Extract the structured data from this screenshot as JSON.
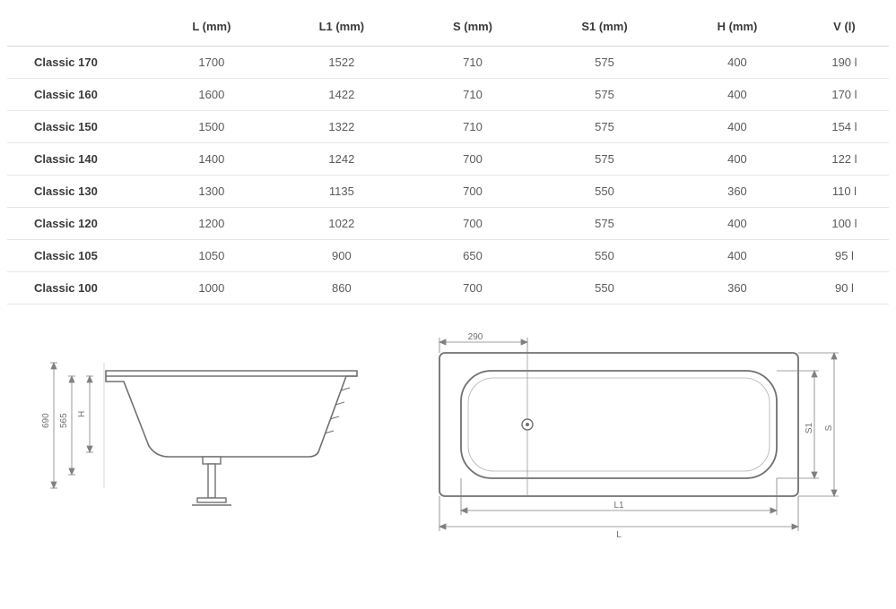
{
  "table": {
    "columns": [
      "",
      "L (mm)",
      "L1 (mm)",
      "S (mm)",
      "S1  (mm)",
      "H  (mm)",
      "V (l)"
    ],
    "rows": [
      [
        "Classic 170",
        "1700",
        "1522",
        "710",
        "575",
        "400",
        "190 l"
      ],
      [
        "Classic 160",
        "1600",
        "1422",
        "710",
        "575",
        "400",
        "170 l"
      ],
      [
        "Classic 150",
        "1500",
        "1322",
        "710",
        "575",
        "400",
        "154 l"
      ],
      [
        "Classic 140",
        "1400",
        "1242",
        "700",
        "575",
        "400",
        "122 l"
      ],
      [
        "Classic 130",
        "1300",
        "1135",
        "700",
        "550",
        "360",
        "110 l"
      ],
      [
        "Classic 120",
        "1200",
        "1022",
        "700",
        "575",
        "400",
        "100 l"
      ],
      [
        "Classic 105",
        "1050",
        "900",
        "650",
        "550",
        "400",
        "95 l"
      ],
      [
        "Classic 100",
        "1000",
        "860",
        "700",
        "550",
        "360",
        "90 l"
      ]
    ],
    "col_widths": [
      "160px",
      "auto",
      "auto",
      "auto",
      "auto",
      "auto",
      "auto"
    ],
    "header_color": "#3a3a3a",
    "cell_color": "#5a5a5a",
    "border_color": "#e6e6e6",
    "font_size": 13
  },
  "diagram_side": {
    "dims": {
      "outer_height": "690",
      "inner_height": "565",
      "height_label": "H"
    },
    "stroke": "#707070",
    "dim_stroke": "#808080",
    "fill": "#ffffff",
    "font_size": 10
  },
  "diagram_top": {
    "dims": {
      "drain_offset": "290",
      "inner_length": "L1",
      "outer_length": "L",
      "inner_width": "S1",
      "outer_width": "S"
    },
    "stroke": "#707070",
    "dim_stroke": "#808080",
    "fill": "#ffffff",
    "font_size": 10
  }
}
